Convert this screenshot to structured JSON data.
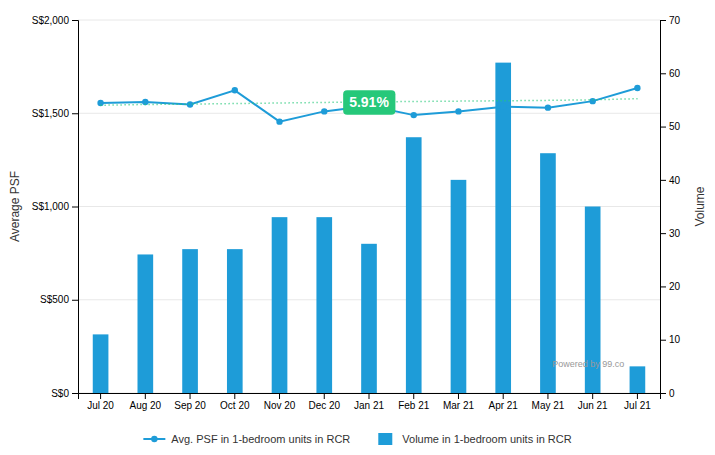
{
  "chart_data": {
    "type": "bar",
    "categories": [
      "Jul 20",
      "Aug 20",
      "Sep 20",
      "Oct 20",
      "Nov 20",
      "Dec 20",
      "Jan 21",
      "Feb 21",
      "Mar 21",
      "Apr 21",
      "May 21",
      "Jun 21",
      "Jul 21"
    ],
    "series": [
      {
        "name": "Avg. PSF in 1-bedroom units in RCR",
        "type": "line",
        "color": "#1e9cd8",
        "marker": "circle",
        "values": [
          1555,
          1560,
          1547,
          1623,
          1455,
          1510,
          1540,
          1490,
          1510,
          1535,
          1530,
          1565,
          1635
        ]
      },
      {
        "name": "Volume in 1-bedroom units in RCR",
        "type": "bar",
        "color": "#1e9cd8",
        "axis": "y2",
        "values": [
          11,
          26,
          27,
          27,
          33,
          33,
          28,
          48,
          40,
          62,
          45,
          35,
          5
        ]
      },
      {
        "type": "line",
        "color": "#26c87a",
        "line_style": "dotted",
        "values": [
          1543,
          1547,
          1549,
          1552,
          1555,
          1558,
          1561,
          1563,
          1565,
          1567,
          1569,
          1572,
          1578
        ]
      }
    ],
    "ylabel": "Average PSF",
    "y2label": "Volume",
    "ylim": [
      0,
      2000
    ],
    "yticks": [
      {
        "value": 0,
        "label": "S$0"
      },
      {
        "value": 500,
        "label": "S$500"
      },
      {
        "value": 1000,
        "label": "S$1,000"
      },
      {
        "value": 1500,
        "label": "S$1,500"
      },
      {
        "value": 2000,
        "label": "S$2,000"
      }
    ],
    "y2lim": [
      0,
      70
    ],
    "y2ticks": [
      0,
      10,
      20,
      30,
      40,
      50,
      60,
      70
    ],
    "grid": true,
    "legend": "bottom",
    "annotations": [
      {
        "text": "5.91%",
        "x": "Jan 21",
        "y": 1558,
        "color": "#ffffff",
        "background": "#26c87a"
      }
    ],
    "watermark": "Powered by 99.co"
  }
}
